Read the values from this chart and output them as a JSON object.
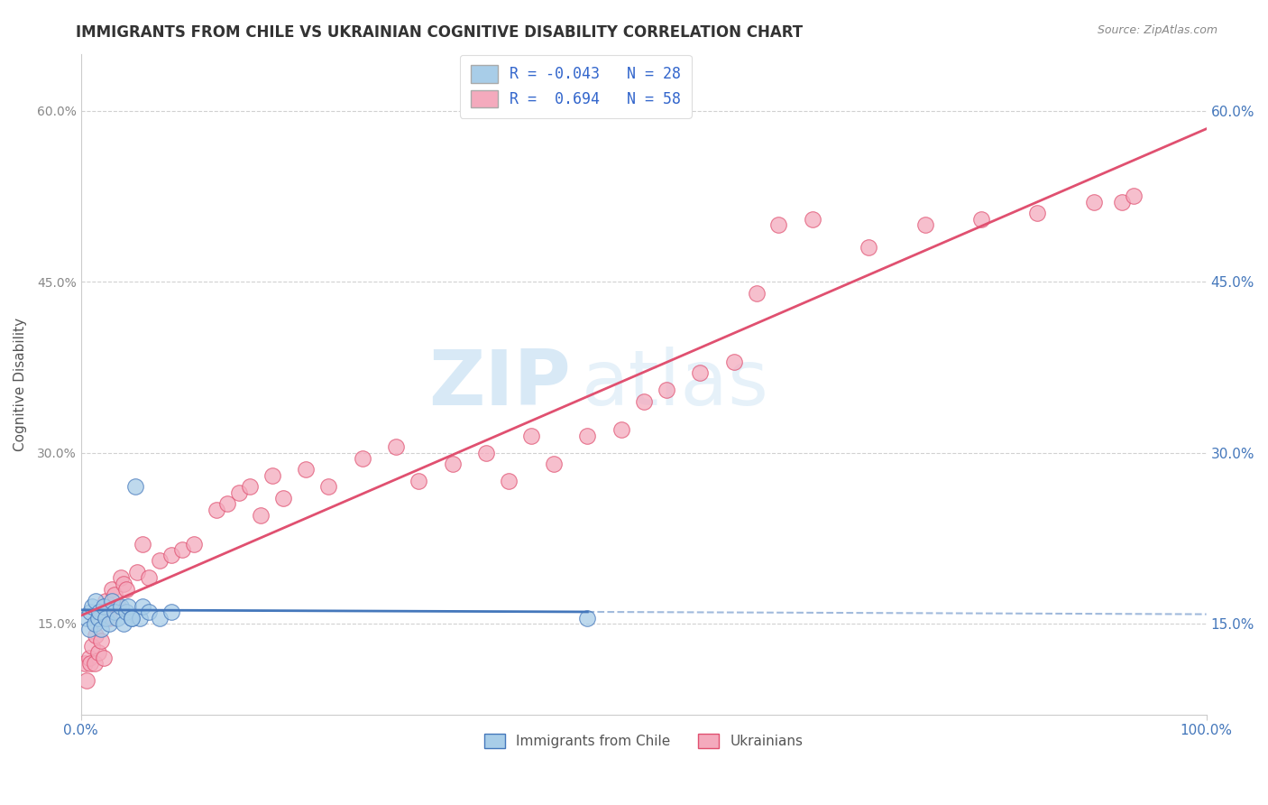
{
  "title": "IMMIGRANTS FROM CHILE VS UKRAINIAN COGNITIVE DISABILITY CORRELATION CHART",
  "source": "Source: ZipAtlas.com",
  "ylabel": "Cognitive Disability",
  "xlim": [
    0.0,
    1.0
  ],
  "ylim": [
    0.07,
    0.65
  ],
  "yticks": [
    0.15,
    0.3,
    0.45,
    0.6
  ],
  "color_blue": "#A8CDE8",
  "color_pink": "#F4AABD",
  "color_line_blue": "#4477BB",
  "color_line_pink": "#E05070",
  "watermark_zip": "ZIP",
  "watermark_atlas": "atlas",
  "background_color": "#FFFFFF",
  "grid_color": "#CCCCCC",
  "title_fontsize": 12,
  "axis_fontsize": 10,
  "legend_fontsize": 12,
  "source_fontsize": 9,
  "blue_x": [
    0.005,
    0.007,
    0.008,
    0.01,
    0.012,
    0.013,
    0.015,
    0.016,
    0.018,
    0.02,
    0.022,
    0.025,
    0.027,
    0.03,
    0.032,
    0.035,
    0.038,
    0.04,
    0.042,
    0.045,
    0.048,
    0.052,
    0.055,
    0.06,
    0.07,
    0.08,
    0.045,
    0.45
  ],
  "blue_y": [
    0.155,
    0.145,
    0.16,
    0.165,
    0.15,
    0.17,
    0.155,
    0.16,
    0.145,
    0.165,
    0.155,
    0.15,
    0.17,
    0.16,
    0.155,
    0.165,
    0.15,
    0.16,
    0.165,
    0.155,
    0.27,
    0.155,
    0.165,
    0.16,
    0.155,
    0.16,
    0.155,
    0.155
  ],
  "pink_x": [
    0.003,
    0.005,
    0.007,
    0.008,
    0.01,
    0.012,
    0.013,
    0.015,
    0.018,
    0.02,
    0.022,
    0.025,
    0.027,
    0.03,
    0.033,
    0.035,
    0.038,
    0.04,
    0.05,
    0.055,
    0.06,
    0.07,
    0.08,
    0.09,
    0.1,
    0.12,
    0.13,
    0.14,
    0.15,
    0.16,
    0.17,
    0.18,
    0.2,
    0.22,
    0.25,
    0.28,
    0.3,
    0.33,
    0.36,
    0.38,
    0.4,
    0.42,
    0.45,
    0.48,
    0.5,
    0.52,
    0.55,
    0.58,
    0.6,
    0.62,
    0.65,
    0.7,
    0.75,
    0.8,
    0.85,
    0.9,
    0.925,
    0.935
  ],
  "pink_y": [
    0.115,
    0.1,
    0.12,
    0.115,
    0.13,
    0.115,
    0.14,
    0.125,
    0.135,
    0.12,
    0.17,
    0.155,
    0.18,
    0.175,
    0.165,
    0.19,
    0.185,
    0.18,
    0.195,
    0.22,
    0.19,
    0.205,
    0.21,
    0.215,
    0.22,
    0.25,
    0.255,
    0.265,
    0.27,
    0.245,
    0.28,
    0.26,
    0.285,
    0.27,
    0.295,
    0.305,
    0.275,
    0.29,
    0.3,
    0.275,
    0.315,
    0.29,
    0.315,
    0.32,
    0.345,
    0.355,
    0.37,
    0.38,
    0.44,
    0.5,
    0.505,
    0.48,
    0.5,
    0.505,
    0.51,
    0.52,
    0.52,
    0.525
  ]
}
